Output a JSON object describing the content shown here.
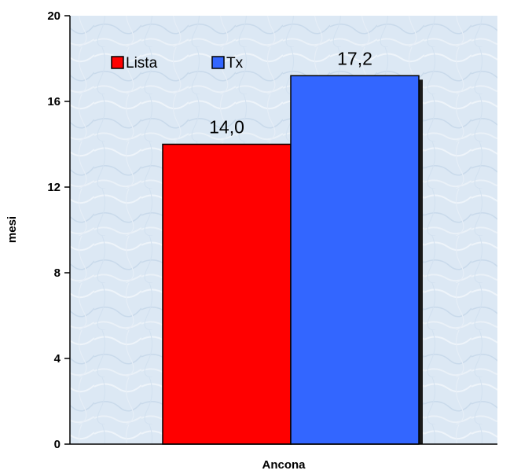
{
  "chart_data": {
    "type": "bar",
    "title": "",
    "xlabel": "Ancona",
    "ylabel": "mesi",
    "categories": [
      "Ancona"
    ],
    "ylim": [
      0,
      20
    ],
    "yticks": [
      0,
      4,
      8,
      12,
      16,
      20
    ],
    "ytick_labels": [
      "0",
      "4",
      "8",
      "12",
      "16",
      "20"
    ],
    "grid": false,
    "legend_position": "top-left",
    "series": [
      {
        "name": "Lista",
        "values": [
          14.0
        ],
        "label": "14,0",
        "color": "#ff0000"
      },
      {
        "name": "Tx",
        "values": [
          17.2
        ],
        "label": "17,2",
        "color": "#3366ff"
      }
    ],
    "colors": {
      "plot_background": "#dce8f4",
      "bar_edge": "#000000",
      "bar_shadow": "#1a1a1a"
    }
  }
}
